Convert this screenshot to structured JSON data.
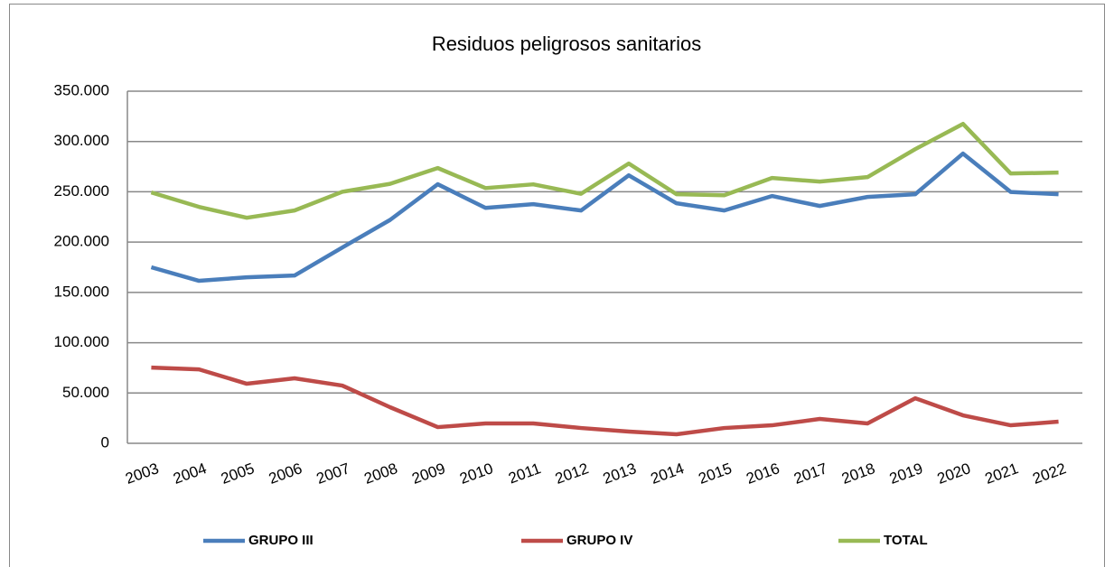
{
  "chart_data": {
    "type": "line",
    "title": "Residuos peligrosos sanitarios",
    "categories": [
      "2003",
      "2004",
      "2005",
      "2006",
      "2007",
      "2008",
      "2009",
      "2010",
      "2011",
      "2012",
      "2013",
      "2014",
      "2015",
      "2016",
      "2017",
      "2018",
      "2019",
      "2020",
      "2021",
      "2022"
    ],
    "series": [
      {
        "name": "GRUPO III",
        "color": "#4a7ebb",
        "values": [
          175000,
          161500,
          165000,
          166800,
          194600,
          222000,
          257500,
          234000,
          237700,
          231400,
          266400,
          238600,
          231400,
          245800,
          235900,
          244900,
          247600,
          288000,
          249800,
          247600
        ]
      },
      {
        "name": "GRUPO IV",
        "color": "#be4b48",
        "values": [
          75300,
          73500,
          59200,
          64600,
          57400,
          35900,
          16100,
          19700,
          19700,
          15200,
          11700,
          9000,
          15200,
          17900,
          24200,
          19700,
          44800,
          27800,
          17900,
          21500
        ]
      },
      {
        "name": "TOTAL",
        "color": "#98b954",
        "values": [
          249400,
          235000,
          224200,
          231400,
          250000,
          257900,
          273600,
          253700,
          257400,
          248000,
          278100,
          247600,
          246600,
          263700,
          260100,
          264600,
          292400,
          317500,
          268200,
          269100
        ]
      }
    ],
    "ylim": [
      0,
      350000
    ],
    "yticks": [
      0,
      {
        "value": 50000,
        "label": "50.000"
      },
      {
        "value": 100000,
        "label": "100.000"
      },
      {
        "value": 150000,
        "label": "150.000"
      },
      {
        "value": 200000,
        "label": "200.000"
      },
      {
        "value": 250000,
        "label": "250.000"
      },
      {
        "value": 300000,
        "label": "300.000"
      },
      {
        "value": 350000,
        "label": "350.000"
      }
    ],
    "grid": true,
    "legend": "bottom"
  }
}
